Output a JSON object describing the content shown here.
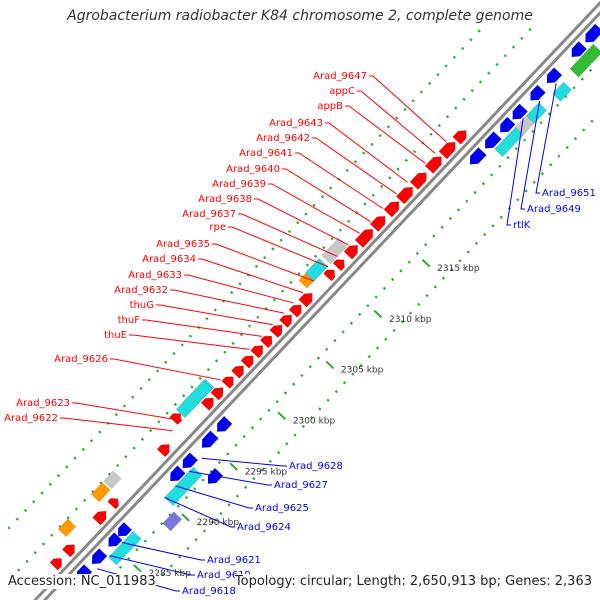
{
  "title": "Agrobacterium radiobacter K84 chromosome 2, complete genome",
  "footer": {
    "accession": "Accession: NC_011983",
    "topology": "Topology: circular; Length: 2,650,913 bp; Genes: 2,363"
  },
  "colors": {
    "forward": "#ff0000",
    "reverse": "#0000ee",
    "rna_cyan": "#22dddd",
    "orange": "#ff9900",
    "gray": "#c8c8c8",
    "green": "#33bb33",
    "lavender": "#7777dd",
    "tick_green": "#33aa33",
    "backbone": "#888888"
  },
  "scale_labels": [
    {
      "kbp": 2285,
      "text": "2285 kbp"
    },
    {
      "kbp": 2290,
      "text": "2290 kbp"
    },
    {
      "kbp": 2295,
      "text": "2295 kbp"
    },
    {
      "kbp": 2300,
      "text": "2300 kbp"
    },
    {
      "kbp": 2305,
      "text": "2305 kbp"
    },
    {
      "kbp": 2310,
      "text": "2310 kbp"
    },
    {
      "kbp": 2315,
      "text": "2315 kbp"
    }
  ],
  "forward_gene_labels": [
    "Arad_9647",
    "appC",
    "appB",
    "Arad_9643",
    "Arad_9642",
    "Arad_9641",
    "Arad_9640",
    "Arad_9639",
    "Arad_9638",
    "Arad_9637",
    "rpe",
    "Arad_9635",
    "Arad_9634",
    "Arad_9633",
    "Arad_9632",
    "thuG",
    "thuF",
    "thuE",
    "Arad_9626",
    "Arad_9623",
    "Arad_9622"
  ],
  "reverse_gene_labels": [
    "Arad_9651",
    "Arad_9649",
    "rtlK",
    "Arad_9628",
    "Arad_9627",
    "Arad_9625",
    "Arad_9624",
    "Arad_9621",
    "Arad_9619",
    "Arad_9618"
  ]
}
